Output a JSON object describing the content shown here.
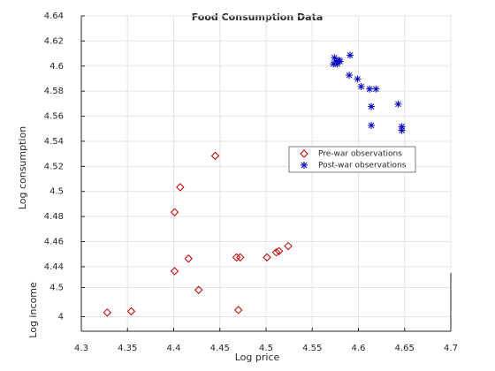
{
  "chart_data": {
    "type": "scatter3d",
    "title": "Food Consumption Data",
    "x_label": "Log price",
    "y_label": "Log income",
    "z_label": "Log consumption",
    "xlim": [
      4.3,
      4.7
    ],
    "ylim": [
      3.75,
      4.75
    ],
    "zlim": [
      4.435,
      4.64
    ],
    "xticks": [
      4.3,
      4.35,
      4.4,
      4.45,
      4.5,
      4.55,
      4.6,
      4.65,
      4.7
    ],
    "yticks": [
      4,
      4.5
    ],
    "zticks": [
      4.44,
      4.46,
      4.48,
      4.5,
      4.52,
      4.54,
      4.56,
      4.58,
      4.6,
      4.62,
      4.64
    ],
    "grid": true,
    "legend": "upper right",
    "series": [
      {
        "name": "Pre-war observations",
        "marker": "diamond",
        "color": "#c00000",
        "x": [
          4.445,
          4.407,
          4.401,
          4.416,
          4.401,
          4.427,
          4.468,
          4.472,
          4.501,
          4.511,
          4.514,
          4.524,
          4.47,
          4.328,
          4.354
        ],
        "y": [
          4.2,
          4.2,
          4.2,
          4.2,
          4.2,
          4.2,
          4.2,
          4.2,
          4.2,
          4.2,
          4.2,
          4.2,
          4.2,
          4.2,
          4.2
        ],
        "z": [
          4.554,
          4.529,
          4.509,
          4.472,
          4.462,
          4.447,
          4.473,
          4.473,
          4.473,
          4.477,
          4.478,
          4.482,
          4.431,
          4.429,
          4.43
        ]
      },
      {
        "name": "Post-war observations",
        "marker": "asterisk",
        "color": "#0000c0",
        "x": [
          4.574,
          4.576,
          4.579,
          4.577,
          4.58,
          4.573,
          4.591,
          4.59,
          4.599,
          4.603,
          4.612,
          4.619,
          4.614,
          4.643,
          4.614,
          4.647,
          4.647
        ],
        "y": [
          4.7,
          4.7,
          4.7,
          4.7,
          4.7,
          4.7,
          4.7,
          4.7,
          4.7,
          4.7,
          4.7,
          4.7,
          4.7,
          4.7,
          4.7,
          4.7,
          4.7
        ],
        "z": [
          4.609,
          4.606,
          4.607,
          4.604,
          4.606,
          4.604,
          4.611,
          4.595,
          4.592,
          4.586,
          4.584,
          4.584,
          4.57,
          4.572,
          4.555,
          4.554,
          4.551
        ]
      }
    ]
  }
}
